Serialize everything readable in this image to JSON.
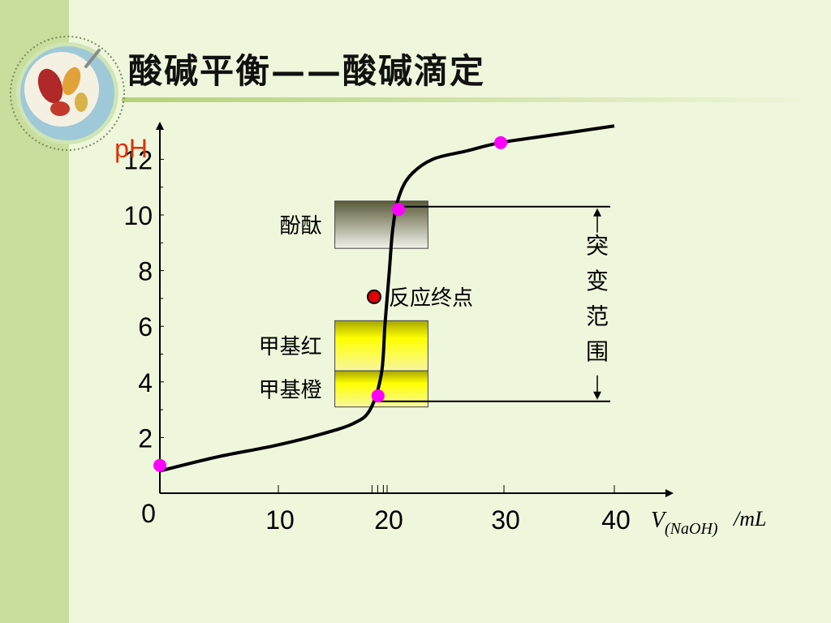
{
  "slide": {
    "title": "酸碱平衡——酸碱滴定"
  },
  "chart_data": {
    "type": "line",
    "ylabel": "pH",
    "xlabel": {
      "v": "V",
      "sub": "(NaOH)",
      "unit": "/mL"
    },
    "xlim": [
      0,
      40
    ],
    "ylim": [
      0,
      14
    ],
    "x_ticks": [
      "10",
      "20",
      "30",
      "40"
    ],
    "y_ticks": [
      "2",
      "4",
      "6",
      "8",
      "10",
      "12"
    ],
    "origin_label": "0",
    "curve": {
      "x": [
        0,
        5,
        10,
        14,
        17,
        18.5,
        19.5,
        19.8,
        20,
        20.2,
        20.5,
        21,
        22,
        24,
        27,
        30,
        35,
        40
      ],
      "y": [
        0.8,
        1.3,
        1.7,
        2.1,
        2.5,
        3.0,
        4.3,
        6.0,
        7.0,
        8.0,
        9.5,
        10.6,
        11.4,
        12.0,
        12.3,
        12.6,
        12.9,
        13.2
      ]
    },
    "highlight_points": [
      {
        "x": 0,
        "y": 1.0
      },
      {
        "x": 19.2,
        "y": 3.5
      },
      {
        "x": 21,
        "y": 10.2
      },
      {
        "x": 30,
        "y": 12.6
      }
    ],
    "endpoint": {
      "x": 20,
      "y": 7.0,
      "label": "反应终点"
    },
    "indicators": [
      {
        "name": "酚酞",
        "y_from": 8.8,
        "y_to": 10.5,
        "kind": "phenolphthalein"
      },
      {
        "name": "甲基红",
        "y_from": 4.4,
        "y_to": 6.2,
        "kind": "yellow"
      },
      {
        "name": "甲基橙",
        "y_from": 3.1,
        "y_to": 4.4,
        "kind": "yellow"
      }
    ],
    "jump_range": {
      "label": [
        "突",
        "变",
        "范",
        "围"
      ],
      "y_from": 3.3,
      "y_to": 10.3
    },
    "colors": {
      "curve": "#000000",
      "highlight": "#ff00ff",
      "endpoint": "#e00000",
      "ylabel": "#e03000"
    }
  }
}
